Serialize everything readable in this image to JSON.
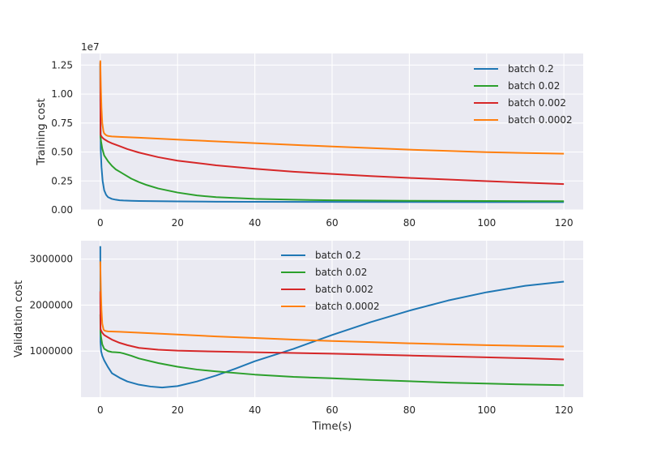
{
  "figure": {
    "xlabel": "Time(s)"
  },
  "chart_data": [
    {
      "type": "line",
      "ylabel": "Training cost",
      "y_multiplier": "1e7",
      "xlim": [
        -5,
        125
      ],
      "ylim": [
        0,
        13500000
      ],
      "xticks": [
        0,
        20,
        40,
        60,
        80,
        100,
        120
      ],
      "xtick_labels": [
        "0",
        "20",
        "40",
        "60",
        "80",
        "100",
        "120"
      ],
      "yticks": [
        0,
        2500000,
        5000000,
        7500000,
        10000000,
        12500000
      ],
      "ytick_labels": [
        "0.00",
        "0.25",
        "0.50",
        "0.75",
        "1.00",
        "1.25"
      ],
      "grid": true,
      "legend_position": "upper right",
      "series": [
        {
          "name": "batch 0.2",
          "color": "#1f77b4",
          "x": [
            0,
            0.1,
            0.3,
            0.6,
            1,
            1.5,
            2,
            3,
            4,
            5,
            6,
            8,
            10,
            15,
            20,
            30,
            40,
            60,
            80,
            100,
            120
          ],
          "y": [
            12800000,
            5300000,
            3700000,
            2500000,
            1700000,
            1300000,
            1100000,
            950000,
            880000,
            830000,
            810000,
            790000,
            770000,
            750000,
            730000,
            710000,
            700000,
            690000,
            680000,
            675000,
            670000
          ]
        },
        {
          "name": "batch 0.02",
          "color": "#2ca02c",
          "x": [
            0,
            0.05,
            0.2,
            0.5,
            1,
            2,
            3,
            4,
            5,
            6,
            8,
            10,
            12,
            15,
            20,
            25,
            30,
            40,
            50,
            60,
            80,
            100,
            120
          ],
          "y": [
            12600000,
            6300000,
            5900000,
            5300000,
            4700000,
            4200000,
            3800000,
            3500000,
            3300000,
            3100000,
            2700000,
            2400000,
            2150000,
            1850000,
            1500000,
            1250000,
            1100000,
            950000,
            880000,
            830000,
            790000,
            770000,
            750000
          ]
        },
        {
          "name": "batch 0.002",
          "color": "#d62728",
          "x": [
            0,
            0.05,
            0.2,
            0.5,
            1,
            2,
            3,
            5,
            7,
            10,
            15,
            20,
            30,
            40,
            50,
            60,
            70,
            80,
            90,
            100,
            110,
            120
          ],
          "y": [
            12700000,
            6500000,
            6400000,
            6250000,
            6100000,
            5900000,
            5750000,
            5500000,
            5250000,
            4950000,
            4550000,
            4250000,
            3850000,
            3550000,
            3300000,
            3100000,
            2920000,
            2760000,
            2620000,
            2480000,
            2350000,
            2230000
          ]
        },
        {
          "name": "batch 0.0002",
          "color": "#ff7f0e",
          "x": [
            0,
            0.05,
            0.15,
            0.3,
            0.5,
            0.8,
            1,
            1.5,
            2,
            3,
            5,
            10,
            20,
            40,
            60,
            80,
            100,
            120
          ],
          "y": [
            12900000,
            12000000,
            10500000,
            8800000,
            7500000,
            6800000,
            6600000,
            6450000,
            6380000,
            6340000,
            6300000,
            6230000,
            6070000,
            5760000,
            5470000,
            5200000,
            4980000,
            4850000
          ]
        }
      ]
    },
    {
      "type": "line",
      "ylabel": "Validation cost",
      "xlabel": "Time(s)",
      "xlim": [
        -5,
        125
      ],
      "ylim": [
        0,
        3400000
      ],
      "xticks": [
        0,
        20,
        40,
        60,
        80,
        100,
        120
      ],
      "xtick_labels": [
        "0",
        "20",
        "40",
        "60",
        "80",
        "100",
        "120"
      ],
      "yticks": [
        1000000,
        2000000,
        3000000
      ],
      "ytick_labels": [
        "1000000",
        "2000000",
        "3000000"
      ],
      "grid": true,
      "legend_position": "upper center",
      "series": [
        {
          "name": "batch 0.2",
          "color": "#1f77b4",
          "x": [
            0,
            0.05,
            0.2,
            0.5,
            1,
            2,
            3,
            5,
            7,
            10,
            13,
            16,
            20,
            25,
            30,
            35,
            40,
            50,
            60,
            70,
            80,
            90,
            100,
            110,
            120
          ],
          "y": [
            3280000,
            1200000,
            1000000,
            900000,
            800000,
            650000,
            520000,
            420000,
            340000,
            270000,
            230000,
            210000,
            240000,
            340000,
            470000,
            620000,
            780000,
            1050000,
            1350000,
            1630000,
            1880000,
            2100000,
            2280000,
            2420000,
            2510000
          ]
        },
        {
          "name": "batch 0.02",
          "color": "#2ca02c",
          "x": [
            0,
            0.05,
            0.2,
            0.5,
            1,
            2,
            3,
            4,
            5,
            6,
            8,
            10,
            15,
            20,
            25,
            30,
            40,
            50,
            60,
            70,
            80,
            90,
            100,
            110,
            120
          ],
          "y": [
            1800000,
            1400000,
            1300000,
            1150000,
            1050000,
            1000000,
            980000,
            975000,
            970000,
            950000,
            900000,
            840000,
            740000,
            660000,
            600000,
            560000,
            490000,
            440000,
            410000,
            375000,
            345000,
            315000,
            295000,
            275000,
            260000
          ]
        },
        {
          "name": "batch 0.002",
          "color": "#d62728",
          "x": [
            0,
            0.05,
            0.2,
            0.5,
            1,
            2,
            3,
            5,
            7,
            10,
            15,
            20,
            30,
            40,
            50,
            60,
            70,
            80,
            90,
            100,
            110,
            120
          ],
          "y": [
            2300000,
            1480000,
            1450000,
            1400000,
            1350000,
            1300000,
            1250000,
            1180000,
            1130000,
            1070000,
            1030000,
            1010000,
            990000,
            975000,
            960000,
            945000,
            925000,
            905000,
            885000,
            865000,
            845000,
            820000
          ]
        },
        {
          "name": "batch 0.0002",
          "color": "#ff7f0e",
          "x": [
            0,
            0.05,
            0.15,
            0.3,
            0.5,
            0.8,
            1,
            1.5,
            2,
            5,
            10,
            20,
            30,
            40,
            50,
            60,
            70,
            80,
            90,
            100,
            110,
            120
          ],
          "y": [
            2950000,
            2700000,
            2300000,
            1900000,
            1600000,
            1480000,
            1450000,
            1435000,
            1430000,
            1420000,
            1400000,
            1360000,
            1320000,
            1285000,
            1250000,
            1220000,
            1195000,
            1170000,
            1150000,
            1130000,
            1115000,
            1100000
          ]
        }
      ]
    }
  ]
}
